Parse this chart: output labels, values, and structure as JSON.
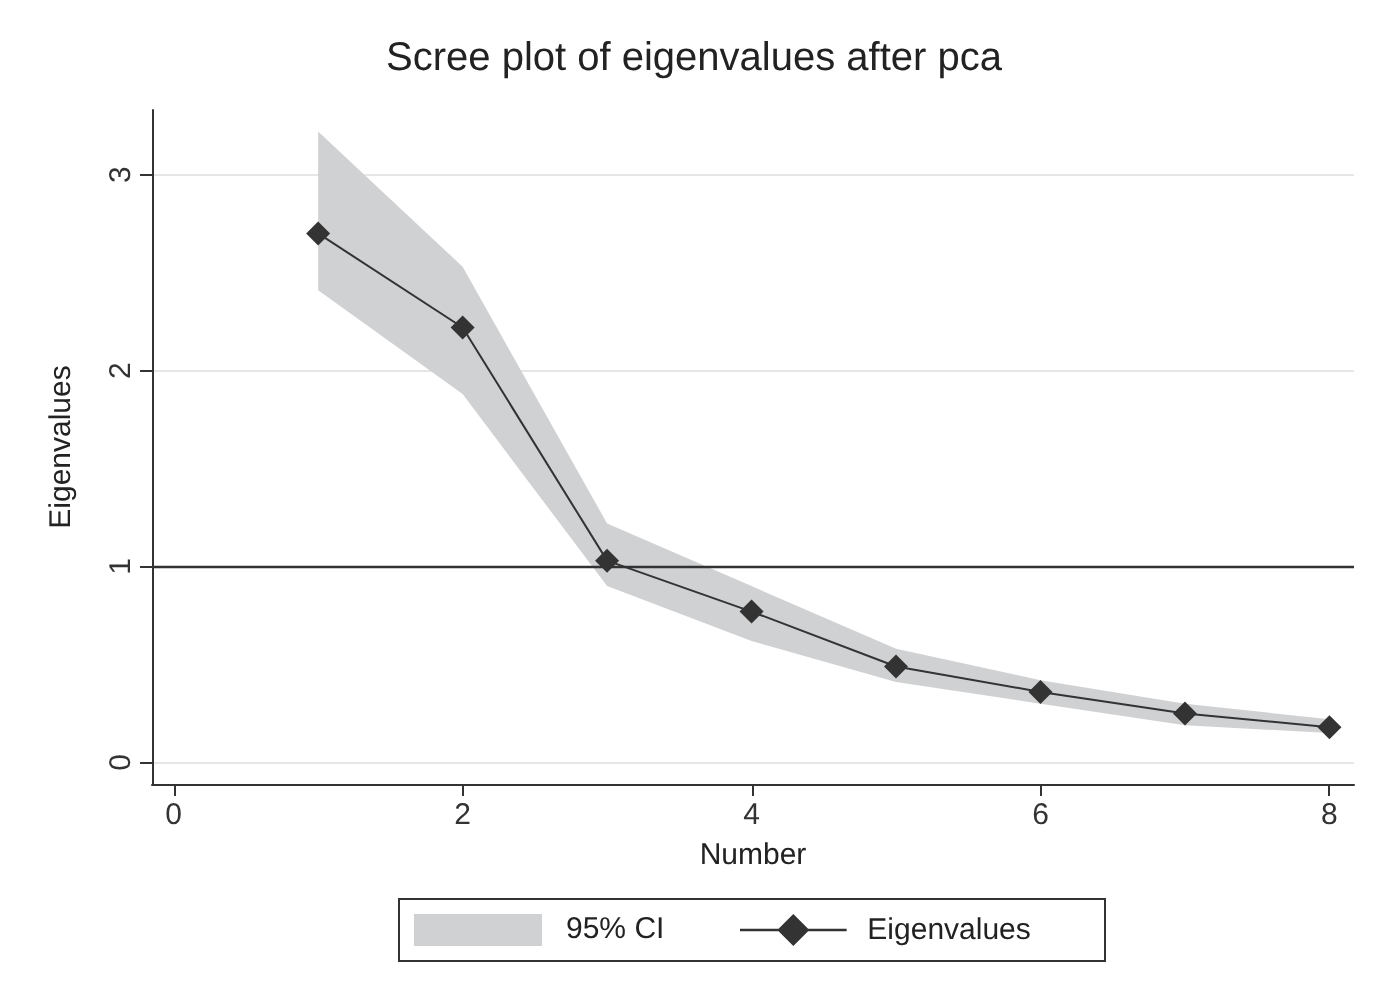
{
  "chart_data": {
    "type": "line",
    "title": "Scree plot of eigenvalues after pca",
    "xlabel": "Number",
    "ylabel": "Eigenvalues",
    "x": [
      1,
      2,
      3,
      4,
      5,
      6,
      7,
      8
    ],
    "series": [
      {
        "name": "Eigenvalues",
        "color": "#333333",
        "values": [
          2.7,
          2.22,
          1.03,
          0.77,
          0.49,
          0.36,
          0.25,
          0.18
        ],
        "lower": [
          2.41,
          1.88,
          0.9,
          0.62,
          0.41,
          0.3,
          0.19,
          0.15
        ],
        "upper": [
          3.22,
          2.53,
          1.22,
          0.9,
          0.58,
          0.42,
          0.3,
          0.22
        ]
      }
    ],
    "annotations": [
      "95% CI"
    ],
    "xlim": [
      -0.15,
      8.17
    ],
    "xticks": [
      0,
      2,
      4,
      6,
      8
    ],
    "ylim": [
      -0.11,
      3.33
    ],
    "yticks": [
      0,
      1,
      2,
      3
    ],
    "ref_lines": [
      {
        "axis": "y",
        "value": 1,
        "color": "#333333"
      }
    ],
    "grid": "y",
    "legend": "bottom",
    "marker": "diamond",
    "line_style": "solid"
  }
}
